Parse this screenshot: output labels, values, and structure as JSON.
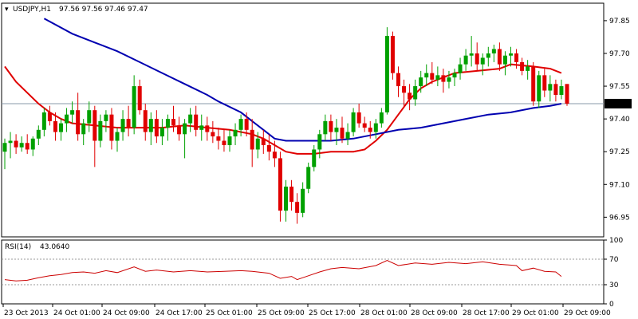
{
  "chart_data": [
    {
      "type": "candlestick",
      "symbol": "USDJPY,H1",
      "ohlc_text": "97.56 97.56 97.46 97.47",
      "ylim": [
        96.86,
        97.93
      ],
      "yticks": [
        "97.85",
        "97.70",
        "97.55",
        "97.40",
        "97.25",
        "97.10",
        "96.95"
      ],
      "current_price": "97.47",
      "colors": {
        "bull": "#00a000",
        "bear": "#e00000",
        "ma_fast": "#e00000",
        "ma_slow": "#0000b0",
        "price_line": "#8899aa"
      },
      "candles": [
        [
          97.25,
          97.31,
          97.17,
          97.29
        ],
        [
          97.29,
          97.34,
          97.22,
          97.3
        ],
        [
          97.3,
          97.33,
          97.24,
          97.27
        ],
        [
          97.27,
          97.32,
          97.25,
          97.29
        ],
        [
          97.29,
          97.33,
          97.24,
          97.26
        ],
        [
          97.26,
          97.32,
          97.23,
          97.31
        ],
        [
          97.31,
          97.37,
          97.28,
          97.35
        ],
        [
          97.35,
          97.45,
          97.32,
          97.43
        ],
        [
          97.43,
          97.46,
          97.37,
          97.39
        ],
        [
          97.39,
          97.43,
          97.3,
          97.34
        ],
        [
          97.34,
          97.4,
          97.3,
          97.38
        ],
        [
          97.38,
          97.45,
          97.34,
          97.42
        ],
        [
          97.42,
          97.48,
          97.38,
          97.44
        ],
        [
          97.44,
          97.52,
          97.3,
          97.33
        ],
        [
          97.33,
          97.4,
          97.28,
          97.38
        ],
        [
          97.38,
          97.48,
          97.34,
          97.44
        ],
        [
          97.44,
          97.46,
          97.18,
          97.3
        ],
        [
          97.3,
          97.42,
          97.27,
          97.39
        ],
        [
          97.39,
          97.44,
          97.34,
          97.42
        ],
        [
          97.42,
          97.45,
          97.26,
          97.3
        ],
        [
          97.3,
          97.36,
          97.25,
          97.34
        ],
        [
          97.34,
          97.44,
          97.3,
          97.4
        ],
        [
          97.4,
          97.46,
          97.32,
          97.36
        ],
        [
          97.36,
          97.6,
          97.33,
          97.55
        ],
        [
          97.55,
          97.58,
          97.42,
          97.44
        ],
        [
          97.44,
          97.47,
          97.3,
          97.34
        ],
        [
          97.34,
          97.43,
          97.28,
          97.4
        ],
        [
          97.4,
          97.44,
          97.29,
          97.32
        ],
        [
          97.32,
          97.4,
          97.28,
          97.36
        ],
        [
          97.36,
          97.42,
          97.3,
          97.4
        ],
        [
          97.4,
          97.46,
          97.34,
          97.37
        ],
        [
          97.37,
          97.41,
          97.3,
          97.33
        ],
        [
          97.33,
          97.4,
          97.22,
          97.38
        ],
        [
          97.38,
          97.45,
          97.34,
          97.42
        ],
        [
          97.42,
          97.46,
          97.32,
          97.35
        ],
        [
          97.35,
          97.42,
          97.3,
          97.37
        ],
        [
          97.37,
          97.41,
          97.3,
          97.34
        ],
        [
          97.34,
          97.39,
          97.29,
          97.32
        ],
        [
          97.32,
          97.36,
          97.26,
          97.3
        ],
        [
          97.3,
          97.35,
          97.25,
          97.28
        ],
        [
          97.28,
          97.35,
          97.25,
          97.32
        ],
        [
          97.32,
          97.38,
          97.28,
          97.35
        ],
        [
          97.35,
          97.42,
          97.32,
          97.4
        ],
        [
          97.4,
          97.43,
          97.32,
          97.35
        ],
        [
          97.35,
          97.4,
          97.18,
          97.26
        ],
        [
          97.26,
          97.34,
          97.22,
          97.31
        ],
        [
          97.31,
          97.35,
          97.24,
          97.28
        ],
        [
          97.28,
          97.33,
          97.21,
          97.25
        ],
        [
          97.25,
          97.3,
          97.18,
          97.22
        ],
        [
          97.22,
          97.25,
          96.93,
          96.98
        ],
        [
          96.98,
          97.12,
          96.93,
          97.09
        ],
        [
          97.09,
          97.12,
          96.98,
          97.02
        ],
        [
          97.02,
          97.06,
          96.92,
          96.97
        ],
        [
          96.97,
          97.11,
          96.95,
          97.08
        ],
        [
          97.08,
          97.2,
          97.06,
          97.18
        ],
        [
          97.18,
          97.28,
          97.16,
          97.26
        ],
        [
          97.26,
          97.35,
          97.22,
          97.33
        ],
        [
          97.33,
          97.42,
          97.3,
          97.39
        ],
        [
          97.39,
          97.42,
          97.3,
          97.34
        ],
        [
          97.34,
          97.4,
          97.28,
          97.36
        ],
        [
          97.36,
          97.41,
          97.29,
          97.31
        ],
        [
          97.31,
          97.38,
          97.28,
          97.34
        ],
        [
          97.34,
          97.45,
          97.32,
          97.43
        ],
        [
          97.43,
          97.47,
          97.36,
          97.38
        ],
        [
          97.38,
          97.41,
          97.34,
          97.36
        ],
        [
          97.36,
          97.39,
          97.31,
          97.34
        ],
        [
          97.34,
          97.4,
          97.31,
          97.38
        ],
        [
          97.38,
          97.45,
          97.36,
          97.43
        ],
        [
          97.43,
          97.82,
          97.42,
          97.78
        ],
        [
          97.78,
          97.8,
          97.58,
          97.61
        ],
        [
          97.61,
          97.64,
          97.5,
          97.55
        ],
        [
          97.55,
          97.58,
          97.46,
          97.52
        ],
        [
          97.52,
          97.56,
          97.44,
          97.49
        ],
        [
          97.49,
          97.58,
          97.46,
          97.55
        ],
        [
          97.55,
          97.62,
          97.52,
          97.59
        ],
        [
          97.59,
          97.65,
          97.55,
          97.61
        ],
        [
          97.61,
          97.66,
          97.56,
          97.58
        ],
        [
          97.58,
          97.64,
          97.55,
          97.6
        ],
        [
          97.6,
          97.63,
          97.52,
          97.57
        ],
        [
          97.57,
          97.62,
          97.54,
          97.59
        ],
        [
          97.59,
          97.63,
          97.55,
          97.61
        ],
        [
          97.61,
          97.68,
          97.58,
          97.65
        ],
        [
          97.65,
          97.72,
          97.62,
          97.69
        ],
        [
          97.69,
          97.78,
          97.64,
          97.7
        ],
        [
          97.7,
          97.75,
          97.62,
          97.65
        ],
        [
          97.65,
          97.7,
          97.6,
          97.68
        ],
        [
          97.68,
          97.73,
          97.64,
          97.7
        ],
        [
          97.7,
          97.74,
          97.66,
          97.72
        ],
        [
          97.72,
          97.75,
          97.62,
          97.65
        ],
        [
          97.65,
          97.71,
          97.6,
          97.69
        ],
        [
          97.69,
          97.73,
          97.64,
          97.7
        ],
        [
          97.7,
          97.72,
          97.63,
          97.66
        ],
        [
          97.66,
          97.68,
          97.6,
          97.62
        ],
        [
          97.62,
          97.67,
          97.58,
          97.64
        ],
        [
          97.64,
          97.66,
          97.46,
          97.48
        ],
        [
          97.48,
          97.62,
          97.45,
          97.6
        ],
        [
          97.6,
          97.63,
          97.5,
          97.53
        ],
        [
          97.53,
          97.6,
          97.48,
          97.56
        ],
        [
          97.56,
          97.58,
          97.48,
          97.51
        ],
        [
          97.51,
          97.58,
          97.49,
          97.55
        ],
        [
          97.56,
          97.56,
          97.46,
          97.47
        ]
      ],
      "ma_fast": [
        [
          0,
          97.64
        ],
        [
          2,
          97.57
        ],
        [
          4,
          97.52
        ],
        [
          6,
          97.47
        ],
        [
          8,
          97.43
        ],
        [
          10,
          97.4
        ],
        [
          12,
          97.38
        ],
        [
          16,
          97.37
        ],
        [
          20,
          97.36
        ],
        [
          24,
          97.36
        ],
        [
          28,
          97.36
        ],
        [
          32,
          97.37
        ],
        [
          36,
          97.36
        ],
        [
          40,
          97.35
        ],
        [
          44,
          97.33
        ],
        [
          46,
          97.31
        ],
        [
          48,
          97.28
        ],
        [
          50,
          97.25
        ],
        [
          52,
          97.24
        ],
        [
          55,
          97.24
        ],
        [
          58,
          97.25
        ],
        [
          62,
          97.25
        ],
        [
          64,
          97.26
        ],
        [
          66,
          97.3
        ],
        [
          68,
          97.35
        ],
        [
          70,
          97.42
        ],
        [
          72,
          97.49
        ],
        [
          74,
          97.54
        ],
        [
          76,
          97.57
        ],
        [
          78,
          97.59
        ],
        [
          80,
          97.61
        ],
        [
          84,
          97.62
        ],
        [
          88,
          97.63
        ],
        [
          90,
          97.65
        ],
        [
          94,
          97.64
        ],
        [
          97,
          97.63
        ],
        [
          99,
          97.61
        ]
      ],
      "ma_slow": [
        [
          7,
          97.86
        ],
        [
          12,
          97.79
        ],
        [
          16,
          97.75
        ],
        [
          20,
          97.71
        ],
        [
          24,
          97.66
        ],
        [
          28,
          97.61
        ],
        [
          32,
          97.56
        ],
        [
          36,
          97.51
        ],
        [
          38,
          97.48
        ],
        [
          42,
          97.43
        ],
        [
          44,
          97.39
        ],
        [
          46,
          97.35
        ],
        [
          48,
          97.31
        ],
        [
          50,
          97.3
        ],
        [
          54,
          97.3
        ],
        [
          58,
          97.3
        ],
        [
          62,
          97.31
        ],
        [
          66,
          97.33
        ],
        [
          70,
          97.35
        ],
        [
          74,
          97.36
        ],
        [
          78,
          97.38
        ],
        [
          82,
          97.4
        ],
        [
          86,
          97.42
        ],
        [
          90,
          97.43
        ],
        [
          94,
          97.45
        ],
        [
          97,
          97.46
        ],
        [
          99,
          97.47
        ]
      ]
    },
    {
      "type": "line",
      "indicator": "RSI(14)",
      "value_text": "43.0640",
      "ylim": [
        0,
        100
      ],
      "yticks": [
        "100",
        "70",
        "30",
        "0"
      ],
      "levels": [
        70,
        30
      ],
      "rsi": [
        [
          0,
          38
        ],
        [
          2,
          36
        ],
        [
          4,
          37
        ],
        [
          6,
          41
        ],
        [
          8,
          44
        ],
        [
          10,
          46
        ],
        [
          12,
          49
        ],
        [
          14,
          50
        ],
        [
          16,
          48
        ],
        [
          18,
          52
        ],
        [
          20,
          49
        ],
        [
          23,
          58
        ],
        [
          25,
          51
        ],
        [
          27,
          53
        ],
        [
          30,
          50
        ],
        [
          33,
          52
        ],
        [
          36,
          50
        ],
        [
          39,
          51
        ],
        [
          42,
          52
        ],
        [
          44,
          51
        ],
        [
          47,
          48
        ],
        [
          49,
          40
        ],
        [
          51,
          43
        ],
        [
          52,
          38
        ],
        [
          54,
          44
        ],
        [
          56,
          50
        ],
        [
          58,
          55
        ],
        [
          60,
          57
        ],
        [
          63,
          55
        ],
        [
          66,
          60
        ],
        [
          68,
          68
        ],
        [
          70,
          60
        ],
        [
          73,
          64
        ],
        [
          76,
          62
        ],
        [
          79,
          65
        ],
        [
          82,
          63
        ],
        [
          85,
          66
        ],
        [
          88,
          62
        ],
        [
          91,
          60
        ],
        [
          92,
          52
        ],
        [
          94,
          56
        ],
        [
          96,
          51
        ],
        [
          98,
          50
        ],
        [
          99,
          43
        ]
      ]
    }
  ],
  "x_axis": {
    "labels": [
      "23 Oct 2013",
      "24 Oct 01:00",
      "24 Oct 09:00",
      "24 Oct 17:00",
      "25 Oct 01:00",
      "25 Oct 09:00",
      "25 Oct 17:00",
      "28 Oct 01:00",
      "28 Oct 09:00",
      "28 Oct 17:00",
      "29 Oct 01:00",
      "29 Oct 09:00"
    ]
  }
}
